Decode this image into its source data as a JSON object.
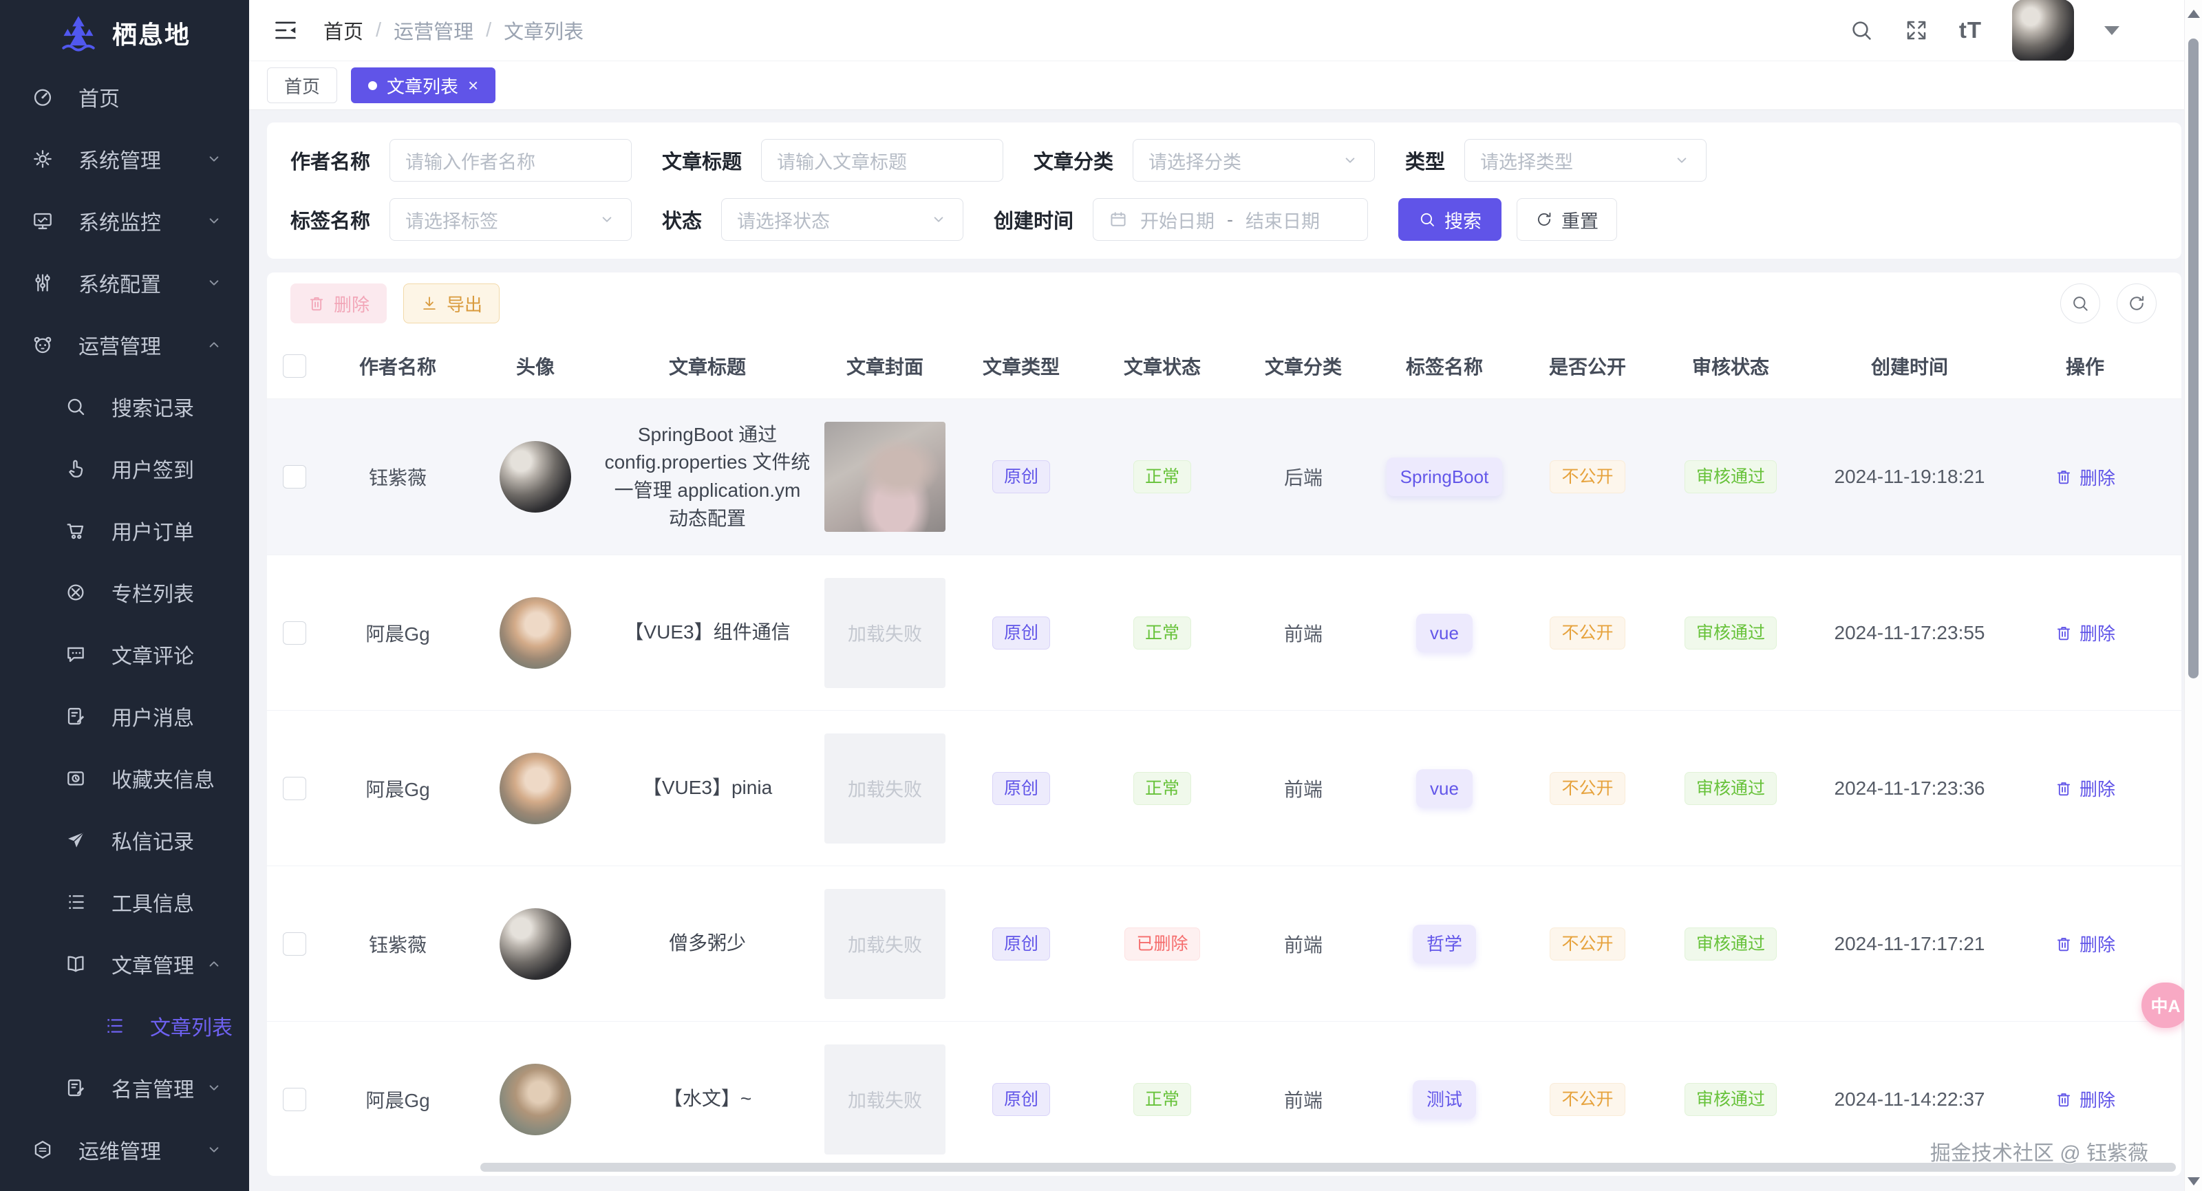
{
  "app": {
    "name": "栖息地"
  },
  "colors": {
    "accent": "#6054e8",
    "success": "#67c23a",
    "danger": "#f56c6c",
    "warning": "#e6a23c",
    "sidebar_bg": "#1f2634",
    "page_bg": "#f2f3f7"
  },
  "sidebar": {
    "items": [
      {
        "label": "首页",
        "icon": "dashboard-icon",
        "level": 1
      },
      {
        "label": "系统管理",
        "icon": "gear-icon",
        "level": 1,
        "chevron": "down"
      },
      {
        "label": "系统监控",
        "icon": "monitor-icon",
        "level": 1,
        "chevron": "down"
      },
      {
        "label": "系统配置",
        "icon": "sliders-icon",
        "level": 1,
        "chevron": "down"
      },
      {
        "label": "运营管理",
        "icon": "panda-icon",
        "level": 1,
        "chevron": "up"
      },
      {
        "label": "搜索记录",
        "icon": "search-icon",
        "level": 2
      },
      {
        "label": "用户签到",
        "icon": "hand-pointer-icon",
        "level": 2
      },
      {
        "label": "用户订单",
        "icon": "cart-icon",
        "level": 2
      },
      {
        "label": "专栏列表",
        "icon": "compass-icon",
        "level": 2
      },
      {
        "label": "文章评论",
        "icon": "comment-icon",
        "level": 2
      },
      {
        "label": "用户消息",
        "icon": "message-edit-icon",
        "level": 2
      },
      {
        "label": "收藏夹信息",
        "icon": "folder-clock-icon",
        "level": 2
      },
      {
        "label": "私信记录",
        "icon": "paper-plane-icon",
        "level": 2
      },
      {
        "label": "工具信息",
        "icon": "list-icon",
        "level": 2
      },
      {
        "label": "文章管理",
        "icon": "book-icon",
        "level": 2,
        "chevron": "up"
      },
      {
        "label": "文章列表",
        "icon": "article-list-icon",
        "level": 3,
        "active": true
      },
      {
        "label": "名言管理",
        "icon": "quote-edit-icon",
        "level": 2,
        "chevron": "down"
      },
      {
        "label": "运维管理",
        "icon": "hexagon-icon",
        "level": 1,
        "chevron": "down"
      }
    ]
  },
  "topbar": {
    "breadcrumb": [
      "首页",
      "运营管理",
      "文章列表"
    ],
    "separator": "/",
    "font_size_glyph": "tT"
  },
  "tabs": [
    {
      "label": "首页",
      "active": false,
      "closable": false
    },
    {
      "label": "文章列表",
      "active": true,
      "closable": true,
      "close_glyph": "×"
    }
  ],
  "filters": {
    "rows": [
      [
        {
          "label": "作者名称",
          "kind": "input",
          "placeholder": "请输入作者名称"
        },
        {
          "label": "文章标题",
          "kind": "input",
          "placeholder": "请输入文章标题"
        },
        {
          "label": "文章分类",
          "kind": "select",
          "placeholder": "请选择分类"
        },
        {
          "label": "类型",
          "kind": "select",
          "placeholder": "请选择类型"
        }
      ],
      [
        {
          "label": "标签名称",
          "kind": "select",
          "placeholder": "请选择标签"
        },
        {
          "label": "状态",
          "kind": "select",
          "placeholder": "请选择状态"
        },
        {
          "label": "创建时间",
          "kind": "daterange",
          "start_placeholder": "开始日期",
          "separator": "-",
          "end_placeholder": "结束日期"
        }
      ]
    ],
    "search_label": "搜索",
    "reset_label": "重置"
  },
  "toolbar": {
    "delete_label": "删除",
    "export_label": "导出"
  },
  "table": {
    "columns": [
      "作者名称",
      "头像",
      "文章标题",
      "文章封面",
      "文章类型",
      "文章状态",
      "文章分类",
      "标签名称",
      "是否公开",
      "审核状态",
      "创建时间",
      "操作"
    ],
    "action_label": "删除",
    "cover_failed_text": "加载失败",
    "rows": [
      {
        "author": "钰紫薇",
        "avatar": "selfie-dark",
        "title": "SpringBoot 通过 config.properties 文件统一管理 application.ym 动态配置",
        "cover": "image",
        "type": "原创",
        "status": "正常",
        "status_kind": "success",
        "category": "后端",
        "tag": "SpringBoot",
        "visibility": "不公开",
        "audit": "审核通过",
        "created": "2024-11-19:18:21",
        "highlight": true
      },
      {
        "author": "阿晨Gg",
        "avatar": "portrait-light",
        "title": "【VUE3】组件通信",
        "cover": "failed",
        "type": "原创",
        "status": "正常",
        "status_kind": "success",
        "category": "前端",
        "tag": "vue",
        "visibility": "不公开",
        "audit": "审核通过",
        "created": "2024-11-17:23:55",
        "highlight": false
      },
      {
        "author": "阿晨Gg",
        "avatar": "portrait-light",
        "title": "【VUE3】pinia",
        "cover": "failed",
        "type": "原创",
        "status": "正常",
        "status_kind": "success",
        "category": "前端",
        "tag": "vue",
        "visibility": "不公开",
        "audit": "审核通过",
        "created": "2024-11-17:23:36",
        "highlight": false
      },
      {
        "author": "钰紫薇",
        "avatar": "selfie-dark",
        "title": "僧多粥少",
        "cover": "failed",
        "type": "原创",
        "status": "已删除",
        "status_kind": "danger",
        "category": "前端",
        "tag": "哲学",
        "visibility": "不公开",
        "audit": "审核通过",
        "created": "2024-11-17:17:21",
        "highlight": false
      },
      {
        "author": "阿晨Gg",
        "avatar": "portrait-man",
        "title": "【水文】~",
        "cover": "failed",
        "type": "原创",
        "status": "正常",
        "status_kind": "success",
        "category": "前端",
        "tag": "测试",
        "visibility": "不公开",
        "audit": "审核通过",
        "created": "2024-11-14:22:37",
        "highlight": false
      }
    ]
  },
  "watermark": "掘金技术社区 @ 钰紫薇",
  "translate_fab": {
    "label": "中A"
  }
}
